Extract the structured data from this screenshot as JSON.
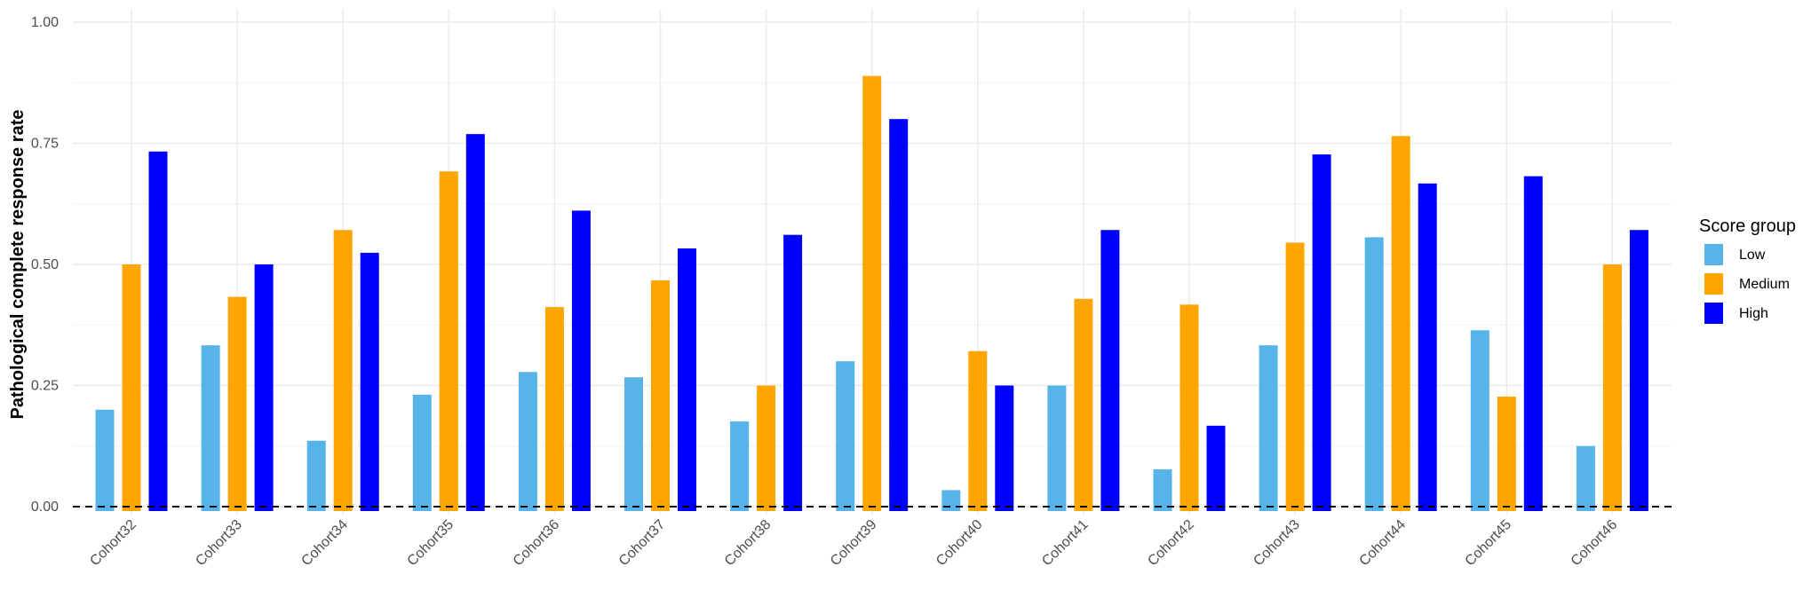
{
  "chart_data": {
    "type": "bar",
    "title": "",
    "xlabel": "",
    "ylabel": "Pathological complete response rate",
    "ylim": [
      0,
      1
    ],
    "yticks": [
      "0.00",
      "0.25",
      "0.50",
      "0.75",
      "1.00"
    ],
    "categories": [
      "Cohort32",
      "Cohort33",
      "Cohort34",
      "Cohort35",
      "Cohort36",
      "Cohort37",
      "Cohort38",
      "Cohort39",
      "Cohort40",
      "Cohort41",
      "Cohort42",
      "Cohort43",
      "Cohort44",
      "Cohort45",
      "Cohort46"
    ],
    "series": [
      {
        "name": "Low",
        "color": "#56B4E9",
        "values": [
          0.2,
          0.333,
          0.136,
          0.231,
          0.278,
          0.267,
          0.176,
          0.3,
          0.034,
          0.25,
          0.077,
          0.333,
          0.556,
          0.364,
          0.125
        ]
      },
      {
        "name": "Medium",
        "color": "#FFA500",
        "values": [
          0.5,
          0.433,
          0.571,
          0.692,
          0.412,
          0.467,
          0.25,
          0.889,
          0.321,
          0.429,
          0.417,
          0.545,
          0.765,
          0.227,
          0.5
        ]
      },
      {
        "name": "High",
        "color": "#0000FF",
        "values": [
          0.733,
          0.5,
          0.524,
          0.769,
          0.611,
          0.533,
          0.561,
          0.8,
          0.25,
          0.571,
          0.167,
          0.727,
          0.667,
          0.682,
          0.571
        ]
      }
    ],
    "reference_line": {
      "y": 0,
      "style": "dashed"
    },
    "legend": {
      "title": "Score group",
      "position": "right"
    },
    "grid": true
  }
}
